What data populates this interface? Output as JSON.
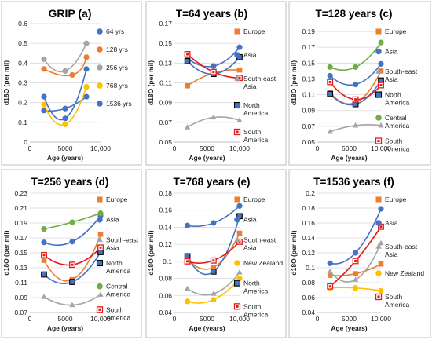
{
  "colors": {
    "blue": "#4472C4",
    "orange": "#ED7D31",
    "gray": "#A5A5A5",
    "yellow": "#FFC000",
    "green": "#70AD47",
    "red": "#E31A1C"
  },
  "chart_data": [
    {
      "type": "scatter",
      "title": "GRIP (a)",
      "xlabel": "Age (years)",
      "ylabel": "d18O (per mil)",
      "xlim": [
        0,
        10000
      ],
      "ylim": [
        0,
        0.6
      ],
      "yticks": [
        "0",
        "0.1",
        "0.2",
        "0.3",
        "0.4",
        "0.5",
        "0.6"
      ],
      "yticks_v": [
        0,
        0.1,
        0.2,
        0.3,
        0.4,
        0.5,
        0.6
      ],
      "xticks": [
        "0",
        "5000",
        "10,000"
      ],
      "xticks_v": [
        0,
        5000,
        10000
      ],
      "series": [
        {
          "name": "64 yrs",
          "color": "blue",
          "marker": "circle",
          "x": [
            2000,
            5000,
            8000
          ],
          "y": [
            0.16,
            0.17,
            0.23
          ]
        },
        {
          "name": "128 yrs",
          "color": "orange",
          "marker": "circle",
          "x": [
            2000,
            6000,
            8000
          ],
          "y": [
            0.37,
            0.34,
            0.43
          ]
        },
        {
          "name": "256 yrs",
          "color": "gray",
          "marker": "circle",
          "x": [
            2000,
            5000,
            8000
          ],
          "y": [
            0.42,
            0.36,
            0.5
          ]
        },
        {
          "name": "768 yrs",
          "color": "yellow",
          "marker": "circle",
          "x": [
            2000,
            5000,
            8000
          ],
          "y": [
            0.19,
            0.09,
            0.28
          ]
        },
        {
          "name": "1536 yrs",
          "color": "blue",
          "marker": "circle",
          "x": [
            2000,
            5000,
            8000
          ],
          "y": [
            0.23,
            0.12,
            0.37
          ]
        }
      ]
    },
    {
      "type": "scatter",
      "title": "T=64 years (b)",
      "xlabel": "Age (years)",
      "ylabel": "d18O (per mil)",
      "xlim": [
        0,
        10000
      ],
      "ylim": [
        0.05,
        0.17
      ],
      "yticks": [
        "0.05",
        "0.07",
        "0.09",
        "0.11",
        "0.13",
        "0.15",
        "0.17"
      ],
      "yticks_v": [
        0.05,
        0.07,
        0.09,
        0.11,
        0.13,
        0.15,
        0.17
      ],
      "xticks": [
        "0",
        "5000",
        "10,000"
      ],
      "xticks_v": [
        0,
        5000,
        10000
      ],
      "series": [
        {
          "name": "Europe",
          "color": "orange",
          "marker": "square",
          "x": [
            2000,
            6000,
            10000
          ],
          "y": [
            0.107,
            0.12,
            0.123
          ]
        },
        {
          "name": "Asia",
          "color": "blue",
          "marker": "circle",
          "x": [
            2000,
            6000,
            10000
          ],
          "y": [
            0.135,
            0.127,
            0.146
          ]
        },
        {
          "name": "South-east Asia",
          "color": "gray",
          "marker": "triangle",
          "x": [
            2000,
            6000,
            10000
          ],
          "y": [
            0.065,
            0.075,
            0.072
          ]
        },
        {
          "name": "North America",
          "color": "blue",
          "marker": "square-outline",
          "x": [
            2000,
            6000,
            10000
          ],
          "y": [
            0.132,
            0.119,
            0.136
          ]
        },
        {
          "name": "South America",
          "color": "red",
          "marker": "square-open",
          "x": [
            2000,
            6000,
            10000
          ],
          "y": [
            0.139,
            0.121,
            0.115
          ]
        }
      ]
    },
    {
      "type": "scatter",
      "title": "T=128 years (c)",
      "xlabel": "Age (years)",
      "ylabel": "d18O (per mil)",
      "xlim": [
        0,
        10000
      ],
      "ylim": [
        0.05,
        0.2
      ],
      "yticks": [
        "0.05",
        "0.07",
        "0.09",
        "0.11",
        "0.13",
        "0.15",
        "0.17",
        "0.19"
      ],
      "yticks_v": [
        0.05,
        0.07,
        0.09,
        0.11,
        0.13,
        0.15,
        0.17,
        0.19
      ],
      "xticks": [
        "0",
        "5000",
        "10,000"
      ],
      "xticks_v": [
        0,
        5000,
        10000
      ],
      "series": [
        {
          "name": "Europe",
          "color": "orange",
          "marker": "square",
          "x": [
            2000,
            6000,
            10000
          ],
          "y": [
            0.113,
            0.1,
            0.14
          ]
        },
        {
          "name": "Asia",
          "color": "blue",
          "marker": "circle",
          "x": [
            2000,
            6000,
            10000
          ],
          "y": [
            0.134,
            0.123,
            0.149
          ]
        },
        {
          "name": "South-east Asia",
          "color": "gray",
          "marker": "triangle",
          "x": [
            2000,
            6000,
            10000
          ],
          "y": [
            0.063,
            0.071,
            0.071
          ]
        },
        {
          "name": "North America",
          "color": "blue",
          "marker": "square-outline",
          "x": [
            2000,
            6000,
            10000
          ],
          "y": [
            0.111,
            0.098,
            0.128
          ]
        },
        {
          "name": "Central America",
          "color": "green",
          "marker": "circle",
          "x": [
            2000,
            6000,
            10000
          ],
          "y": [
            0.145,
            0.145,
            0.176
          ]
        },
        {
          "name": "South America",
          "color": "red",
          "marker": "square-open",
          "x": [
            2000,
            6000,
            10000
          ],
          "y": [
            0.126,
            0.104,
            0.122
          ]
        }
      ]
    },
    {
      "type": "scatter",
      "title": "T=256 years (d)",
      "xlabel": "Age (years)",
      "ylabel": "d18O (per mil)",
      "xlim": [
        0,
        10000
      ],
      "ylim": [
        0.07,
        0.23
      ],
      "yticks": [
        "0.07",
        "0.09",
        "0.11",
        "0.13",
        "0.15",
        "0.17",
        "0.19",
        "0.21",
        "0.23"
      ],
      "yticks_v": [
        0.07,
        0.09,
        0.11,
        0.13,
        0.15,
        0.17,
        0.19,
        0.21,
        0.23
      ],
      "xticks": [
        "0",
        "5000",
        "10,000"
      ],
      "xticks_v": [
        0,
        5000,
        10000
      ],
      "series": [
        {
          "name": "Europe",
          "color": "orange",
          "marker": "square",
          "x": [
            2000,
            6000,
            10000
          ],
          "y": [
            0.14,
            0.114,
            0.175
          ]
        },
        {
          "name": "Asia",
          "color": "blue",
          "marker": "circle",
          "x": [
            2000,
            6000,
            10000
          ],
          "y": [
            0.164,
            0.165,
            0.2
          ]
        },
        {
          "name": "South-east Asia",
          "color": "gray",
          "marker": "triangle",
          "x": [
            2000,
            6000,
            10000
          ],
          "y": [
            0.091,
            0.08,
            0.094
          ]
        },
        {
          "name": "North America",
          "color": "blue",
          "marker": "square-outline",
          "x": [
            2000,
            6000,
            10000
          ],
          "y": [
            0.121,
            0.111,
            0.151
          ]
        },
        {
          "name": "Central America",
          "color": "green",
          "marker": "circle",
          "x": [
            2000,
            6000,
            10000
          ],
          "y": [
            0.182,
            0.191,
            0.203
          ]
        },
        {
          "name": "South America",
          "color": "red",
          "marker": "square-open",
          "x": [
            2000,
            6000,
            10000
          ],
          "y": [
            0.147,
            0.134,
            0.157
          ]
        }
      ]
    },
    {
      "type": "scatter",
      "title": "T=768 years (e)",
      "xlabel": "Age (years)",
      "ylabel": "d18O (per mil)",
      "xlim": [
        0,
        10000
      ],
      "ylim": [
        0.04,
        0.18
      ],
      "yticks": [
        "0.04",
        "0.06",
        "0.08",
        "0.1",
        "0.12",
        "0.14",
        "0.16",
        "0.18"
      ],
      "yticks_v": [
        0.04,
        0.06,
        0.08,
        0.1,
        0.12,
        0.14,
        0.16,
        0.18
      ],
      "xticks": [
        "0",
        "5000",
        "10,000"
      ],
      "xticks_v": [
        0,
        5000,
        10000
      ],
      "series": [
        {
          "name": "Europe",
          "color": "orange",
          "marker": "square",
          "x": [
            2000,
            6000,
            10000
          ],
          "y": [
            0.103,
            0.093,
            0.133
          ]
        },
        {
          "name": "Asia",
          "color": "blue",
          "marker": "circle",
          "x": [
            2000,
            6000,
            10000
          ],
          "y": [
            0.142,
            0.145,
            0.165
          ]
        },
        {
          "name": "South-east Asia",
          "color": "gray",
          "marker": "triangle",
          "x": [
            2000,
            6000,
            10000
          ],
          "y": [
            0.068,
            0.062,
            0.087
          ]
        },
        {
          "name": "New Zealand",
          "color": "yellow",
          "marker": "circle",
          "x": [
            2000,
            6000,
            10000
          ],
          "y": [
            0.053,
            0.055,
            0.08
          ]
        },
        {
          "name": "North America",
          "color": "blue",
          "marker": "square-outline",
          "x": [
            2000,
            6000,
            10000
          ],
          "y": [
            0.106,
            0.088,
            0.153
          ]
        },
        {
          "name": "South America",
          "color": "red",
          "marker": "square-open",
          "x": [
            2000,
            6000,
            10000
          ],
          "y": [
            0.1,
            0.101,
            0.123
          ]
        }
      ]
    },
    {
      "type": "scatter",
      "title": "T=1536 years (f)",
      "xlabel": "Age (years)",
      "ylabel": "d18O (per mil)",
      "xlim": [
        0,
        10000
      ],
      "ylim": [
        0.04,
        0.2
      ],
      "yticks": [
        "0.04",
        "0.06",
        "0.08",
        "0.1",
        "0.12",
        "0.14",
        "0.16",
        "0.18",
        "0.2"
      ],
      "yticks_v": [
        0.04,
        0.06,
        0.08,
        0.1,
        0.12,
        0.14,
        0.16,
        0.18,
        0.2
      ],
      "xticks": [
        "0",
        "5000",
        "10,000"
      ],
      "xticks_v": [
        0,
        5000,
        10000
      ],
      "series": [
        {
          "name": "Europe",
          "color": "orange",
          "marker": "square",
          "x": [
            2000,
            6000,
            10000
          ],
          "y": [
            0.09,
            0.092,
            0.105
          ]
        },
        {
          "name": "Asia",
          "color": "blue",
          "marker": "circle",
          "x": [
            2000,
            6000,
            10000
          ],
          "y": [
            0.106,
            0.12,
            0.179
          ]
        },
        {
          "name": "South-east Asia",
          "color": "gray",
          "marker": "triangle",
          "x": [
            2000,
            6000,
            10000
          ],
          "y": [
            0.095,
            0.084,
            0.133
          ]
        },
        {
          "name": "New Zealand",
          "color": "yellow",
          "marker": "circle",
          "x": [
            2000,
            6000,
            10000
          ],
          "y": [
            0.073,
            0.073,
            0.069
          ]
        },
        {
          "name": "South America",
          "color": "red",
          "marker": "square-open",
          "x": [
            2000,
            6000,
            10000
          ],
          "y": [
            0.075,
            0.109,
            0.155
          ]
        }
      ]
    }
  ]
}
